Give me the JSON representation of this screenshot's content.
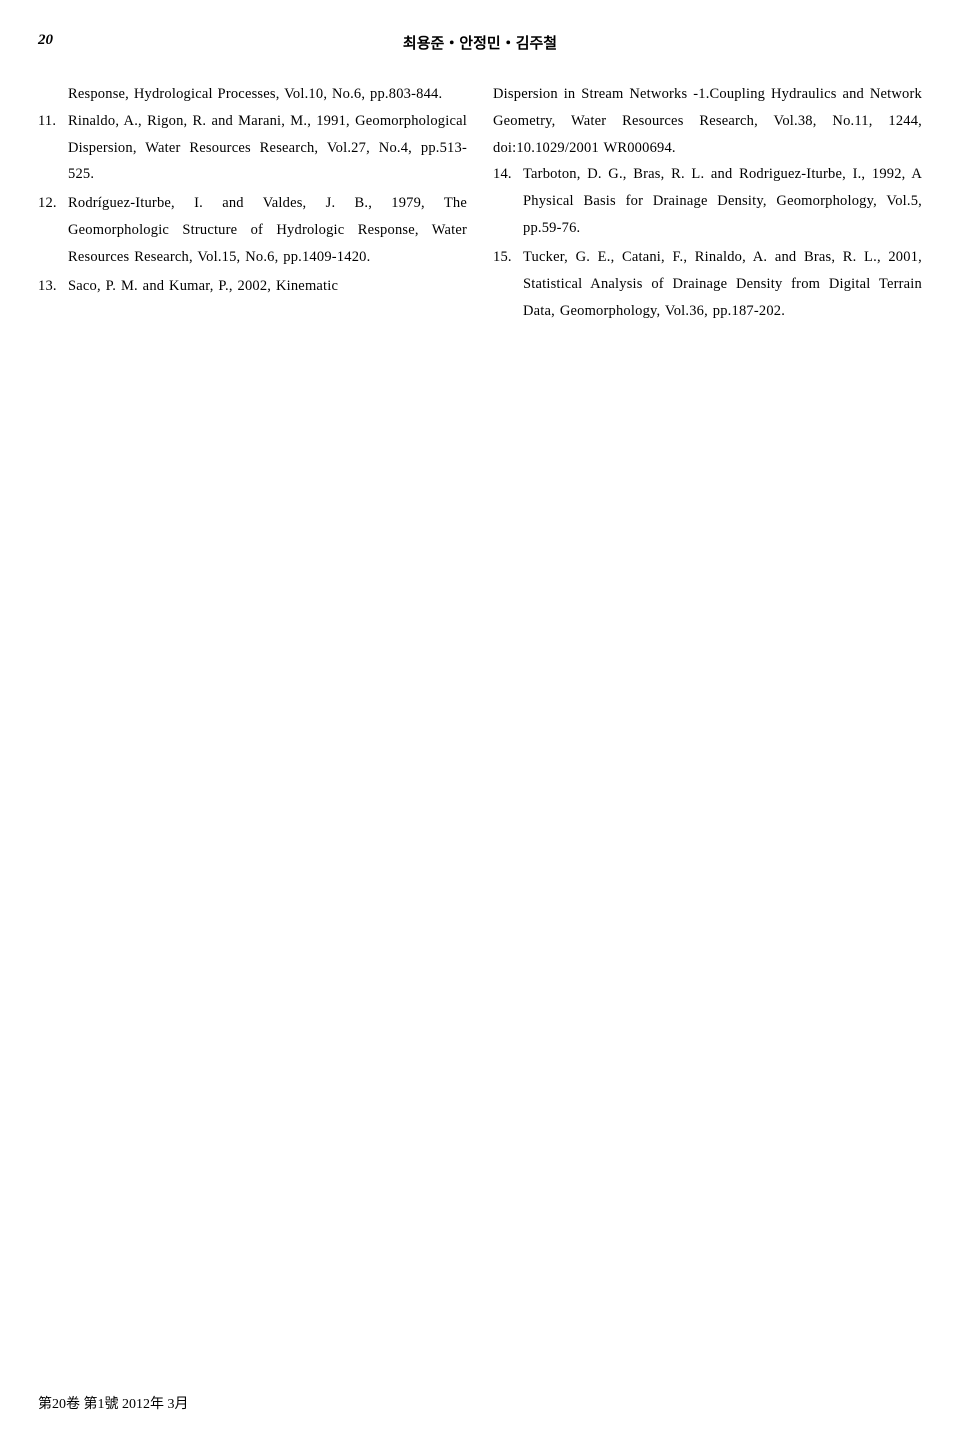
{
  "header": {
    "page_number": "20",
    "authors": "최용준・안정민・김주철"
  },
  "left_column": {
    "ref10_cont": "Response, Hydrological Processes, Vol.10, No.6, pp.803-844.",
    "refs": [
      {
        "num": "11.",
        "text": "Rinaldo, A., Rigon, R. and Marani, M., 1991, Geomorphological Dispersion, Water Resources Research, Vol.27, No.4, pp.513-525."
      },
      {
        "num": "12.",
        "text": "Rodríguez-Iturbe, I. and Valdes, J. B., 1979, The Geomorphologic Structure of Hydrologic Response, Water Resources Research, Vol.15, No.6, pp.1409-1420."
      },
      {
        "num": "13.",
        "text": "Saco, P. M. and Kumar, P., 2002, Kinematic"
      }
    ]
  },
  "right_column": {
    "ref13_cont": "Dispersion in Stream Networks -1.Coupling Hydraulics and Network Geometry, Water Resources Research, Vol.38, No.11, 1244, doi:10.1029/2001 WR000694.",
    "refs": [
      {
        "num": "14.",
        "text": "Tarboton, D. G., Bras, R. L. and Rodriguez-Iturbe, I., 1992, A Physical Basis for Drainage Density, Geomorphology, Vol.5, pp.59-76."
      },
      {
        "num": "15.",
        "text": "Tucker, G. E., Catani, F., Rinaldo, A. and Bras, R. L., 2001, Statistical Analysis of Drainage Density from Digital Terrain Data, Geomorphology, Vol.36, pp.187-202."
      }
    ]
  },
  "footer": {
    "text": "第20卷 第1號 2012年 3月"
  }
}
